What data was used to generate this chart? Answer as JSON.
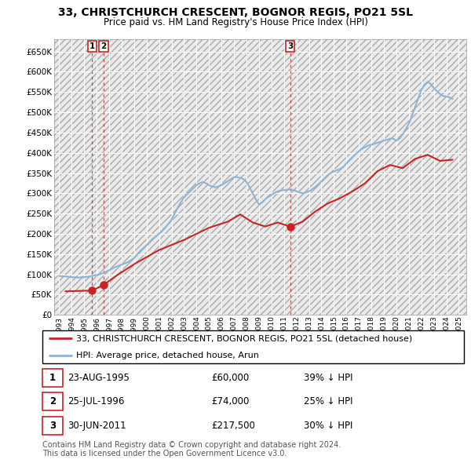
{
  "title": "33, CHRISTCHURCH CRESCENT, BOGNOR REGIS, PO21 5SL",
  "subtitle": "Price paid vs. HM Land Registry's House Price Index (HPI)",
  "title_fontsize": 10,
  "subtitle_fontsize": 8.5,
  "background_color": "#ffffff",
  "plot_bg_color": "#ebebeb",
  "grid_color": "#ffffff",
  "ylim": [
    0,
    680000
  ],
  "yticks": [
    0,
    50000,
    100000,
    150000,
    200000,
    250000,
    300000,
    350000,
    400000,
    450000,
    500000,
    550000,
    600000,
    650000
  ],
  "xlim_start": 1992.6,
  "xlim_end": 2025.6,
  "hpi_color": "#8ab4d8",
  "price_color": "#cc2222",
  "transaction_color": "#cc2222",
  "legend_label_price": "33, CHRISTCHURCH CRESCENT, BOGNOR REGIS, PO21 5SL (detached house)",
  "legend_label_hpi": "HPI: Average price, detached house, Arun",
  "transactions": [
    {
      "id": 1,
      "date_label": "23-AUG-1995",
      "date_num": 1995.64,
      "price": 60000,
      "pct": "39%",
      "direction": "↓"
    },
    {
      "id": 2,
      "date_label": "25-JUL-1996",
      "date_num": 1996.57,
      "price": 74000,
      "pct": "25%",
      "direction": "↓"
    },
    {
      "id": 3,
      "date_label": "30-JUN-2011",
      "date_num": 2011.5,
      "price": 217500,
      "pct": "30%",
      "direction": "↓"
    }
  ],
  "hpi_years": [
    1993.0,
    1993.25,
    1993.5,
    1993.75,
    1994.0,
    1994.25,
    1994.5,
    1994.75,
    1995.0,
    1995.25,
    1995.5,
    1995.75,
    1996.0,
    1996.25,
    1996.5,
    1996.75,
    1997.0,
    1997.25,
    1997.5,
    1997.75,
    1998.0,
    1998.25,
    1998.5,
    1998.75,
    1999.0,
    1999.25,
    1999.5,
    1999.75,
    2000.0,
    2000.25,
    2000.5,
    2000.75,
    2001.0,
    2001.25,
    2001.5,
    2001.75,
    2002.0,
    2002.25,
    2002.5,
    2002.75,
    2003.0,
    2003.25,
    2003.5,
    2003.75,
    2004.0,
    2004.25,
    2004.5,
    2004.75,
    2005.0,
    2005.25,
    2005.5,
    2005.75,
    2006.0,
    2006.25,
    2006.5,
    2006.75,
    2007.0,
    2007.25,
    2007.5,
    2007.75,
    2008.0,
    2008.25,
    2008.5,
    2008.75,
    2009.0,
    2009.25,
    2009.5,
    2009.75,
    2010.0,
    2010.25,
    2010.5,
    2010.75,
    2011.0,
    2011.25,
    2011.5,
    2011.75,
    2012.0,
    2012.25,
    2012.5,
    2012.75,
    2013.0,
    2013.25,
    2013.5,
    2013.75,
    2014.0,
    2014.25,
    2014.5,
    2014.75,
    2015.0,
    2015.25,
    2015.5,
    2015.75,
    2016.0,
    2016.25,
    2016.5,
    2016.75,
    2017.0,
    2017.25,
    2017.5,
    2017.75,
    2018.0,
    2018.25,
    2018.5,
    2018.75,
    2019.0,
    2019.25,
    2019.5,
    2019.75,
    2020.0,
    2020.25,
    2020.5,
    2020.75,
    2021.0,
    2021.25,
    2021.5,
    2021.75,
    2022.0,
    2022.25,
    2022.5,
    2022.75,
    2023.0,
    2023.25,
    2023.5,
    2023.75,
    2024.0,
    2024.25,
    2024.5
  ],
  "hpi_values": [
    96000,
    95500,
    95000,
    94000,
    93000,
    92500,
    92000,
    92500,
    93000,
    94000,
    95000,
    97000,
    98000,
    100000,
    103000,
    106000,
    110000,
    114000,
    118000,
    121000,
    124000,
    127000,
    130000,
    135000,
    140000,
    149000,
    158000,
    165000,
    172000,
    180000,
    188000,
    194000,
    200000,
    207000,
    215000,
    225000,
    235000,
    250000,
    265000,
    278000,
    290000,
    298000,
    305000,
    313000,
    320000,
    325000,
    328000,
    325000,
    320000,
    317000,
    315000,
    317000,
    320000,
    325000,
    330000,
    335000,
    340000,
    340000,
    338000,
    335000,
    328000,
    315000,
    300000,
    285000,
    272000,
    278000,
    285000,
    291000,
    296000,
    301000,
    305000,
    307000,
    308000,
    309000,
    310000,
    308000,
    305000,
    302000,
    300000,
    302000,
    305000,
    310000,
    315000,
    322000,
    330000,
    337000,
    345000,
    350000,
    354000,
    357000,
    360000,
    365000,
    374000,
    382000,
    390000,
    397000,
    404000,
    410000,
    414000,
    418000,
    420000,
    422000,
    425000,
    427000,
    430000,
    432000,
    435000,
    435000,
    430000,
    435000,
    445000,
    458000,
    472000,
    492000,
    512000,
    535000,
    555000,
    568000,
    575000,
    570000,
    560000,
    552000,
    545000,
    540000,
    539000,
    537000,
    533000
  ],
  "price_years": [
    1993.5,
    1995.64,
    1996.57,
    1997.5,
    1999.0,
    2001.0,
    2003.0,
    2005.0,
    2006.5,
    2007.5,
    2008.5,
    2009.5,
    2010.5,
    2011.5,
    2012.5,
    2013.5,
    2014.5,
    2015.5,
    2016.5,
    2017.5,
    2018.5,
    2019.5,
    2020.5,
    2021.5,
    2022.5,
    2023.5,
    2024.5
  ],
  "price_values": [
    58000,
    60000,
    74000,
    95000,
    125000,
    160000,
    185000,
    215000,
    230000,
    248000,
    228000,
    218000,
    228000,
    217500,
    230000,
    255000,
    275000,
    288000,
    305000,
    325000,
    355000,
    370000,
    362000,
    385000,
    395000,
    380000,
    383000
  ],
  "footer_text": "Contains HM Land Registry data © Crown copyright and database right 2024.\nThis data is licensed under the Open Government Licence v3.0.",
  "footer_fontsize": 7.0,
  "table_fontsize": 8.5,
  "legend_fontsize": 8.0
}
